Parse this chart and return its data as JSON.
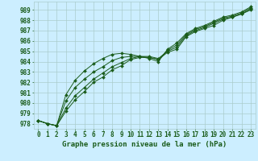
{
  "x": [
    0,
    1,
    2,
    3,
    4,
    5,
    6,
    7,
    8,
    9,
    10,
    11,
    12,
    13,
    14,
    15,
    16,
    17,
    18,
    19,
    20,
    21,
    22,
    23
  ],
  "lines": [
    [
      978.3,
      978.0,
      977.8,
      979.2,
      980.3,
      981.1,
      982.0,
      982.5,
      983.2,
      983.6,
      984.2,
      984.4,
      984.4,
      984.2,
      984.9,
      985.2,
      986.4,
      986.9,
      987.2,
      987.5,
      988.0,
      988.3,
      988.6,
      989.0
    ],
    [
      978.3,
      978.0,
      977.8,
      979.5,
      980.7,
      981.5,
      982.3,
      982.9,
      983.5,
      983.9,
      984.3,
      984.5,
      984.5,
      984.3,
      985.0,
      985.4,
      986.5,
      987.0,
      987.3,
      987.7,
      988.1,
      988.3,
      988.6,
      989.1
    ],
    [
      978.3,
      978.0,
      977.8,
      980.2,
      981.5,
      982.3,
      983.0,
      983.5,
      984.1,
      984.4,
      984.5,
      984.5,
      984.4,
      984.2,
      985.1,
      985.6,
      986.6,
      987.1,
      987.4,
      987.8,
      988.2,
      988.4,
      988.7,
      989.2
    ],
    [
      978.3,
      978.0,
      977.8,
      980.8,
      982.2,
      983.1,
      983.8,
      984.3,
      984.7,
      984.8,
      984.7,
      984.5,
      984.3,
      984.0,
      985.2,
      985.8,
      986.7,
      987.2,
      987.5,
      987.9,
      988.3,
      988.5,
      988.8,
      989.3
    ]
  ],
  "background_color": "#cceeff",
  "grid_color": "#aacccc",
  "line_color": "#1a5c1a",
  "ylabel_values": [
    978,
    979,
    980,
    981,
    982,
    983,
    984,
    985,
    986,
    987,
    988,
    989
  ],
  "xlabel_values": [
    0,
    1,
    2,
    3,
    4,
    5,
    6,
    7,
    8,
    9,
    10,
    11,
    12,
    13,
    14,
    15,
    16,
    17,
    18,
    19,
    20,
    21,
    22,
    23
  ],
  "ylim": [
    977.5,
    989.8
  ],
  "xlim": [
    -0.5,
    23.5
  ],
  "xlabel": "Graphe pression niveau de la mer (hPa)",
  "xlabel_fontsize": 6.5,
  "tick_fontsize": 5.5
}
